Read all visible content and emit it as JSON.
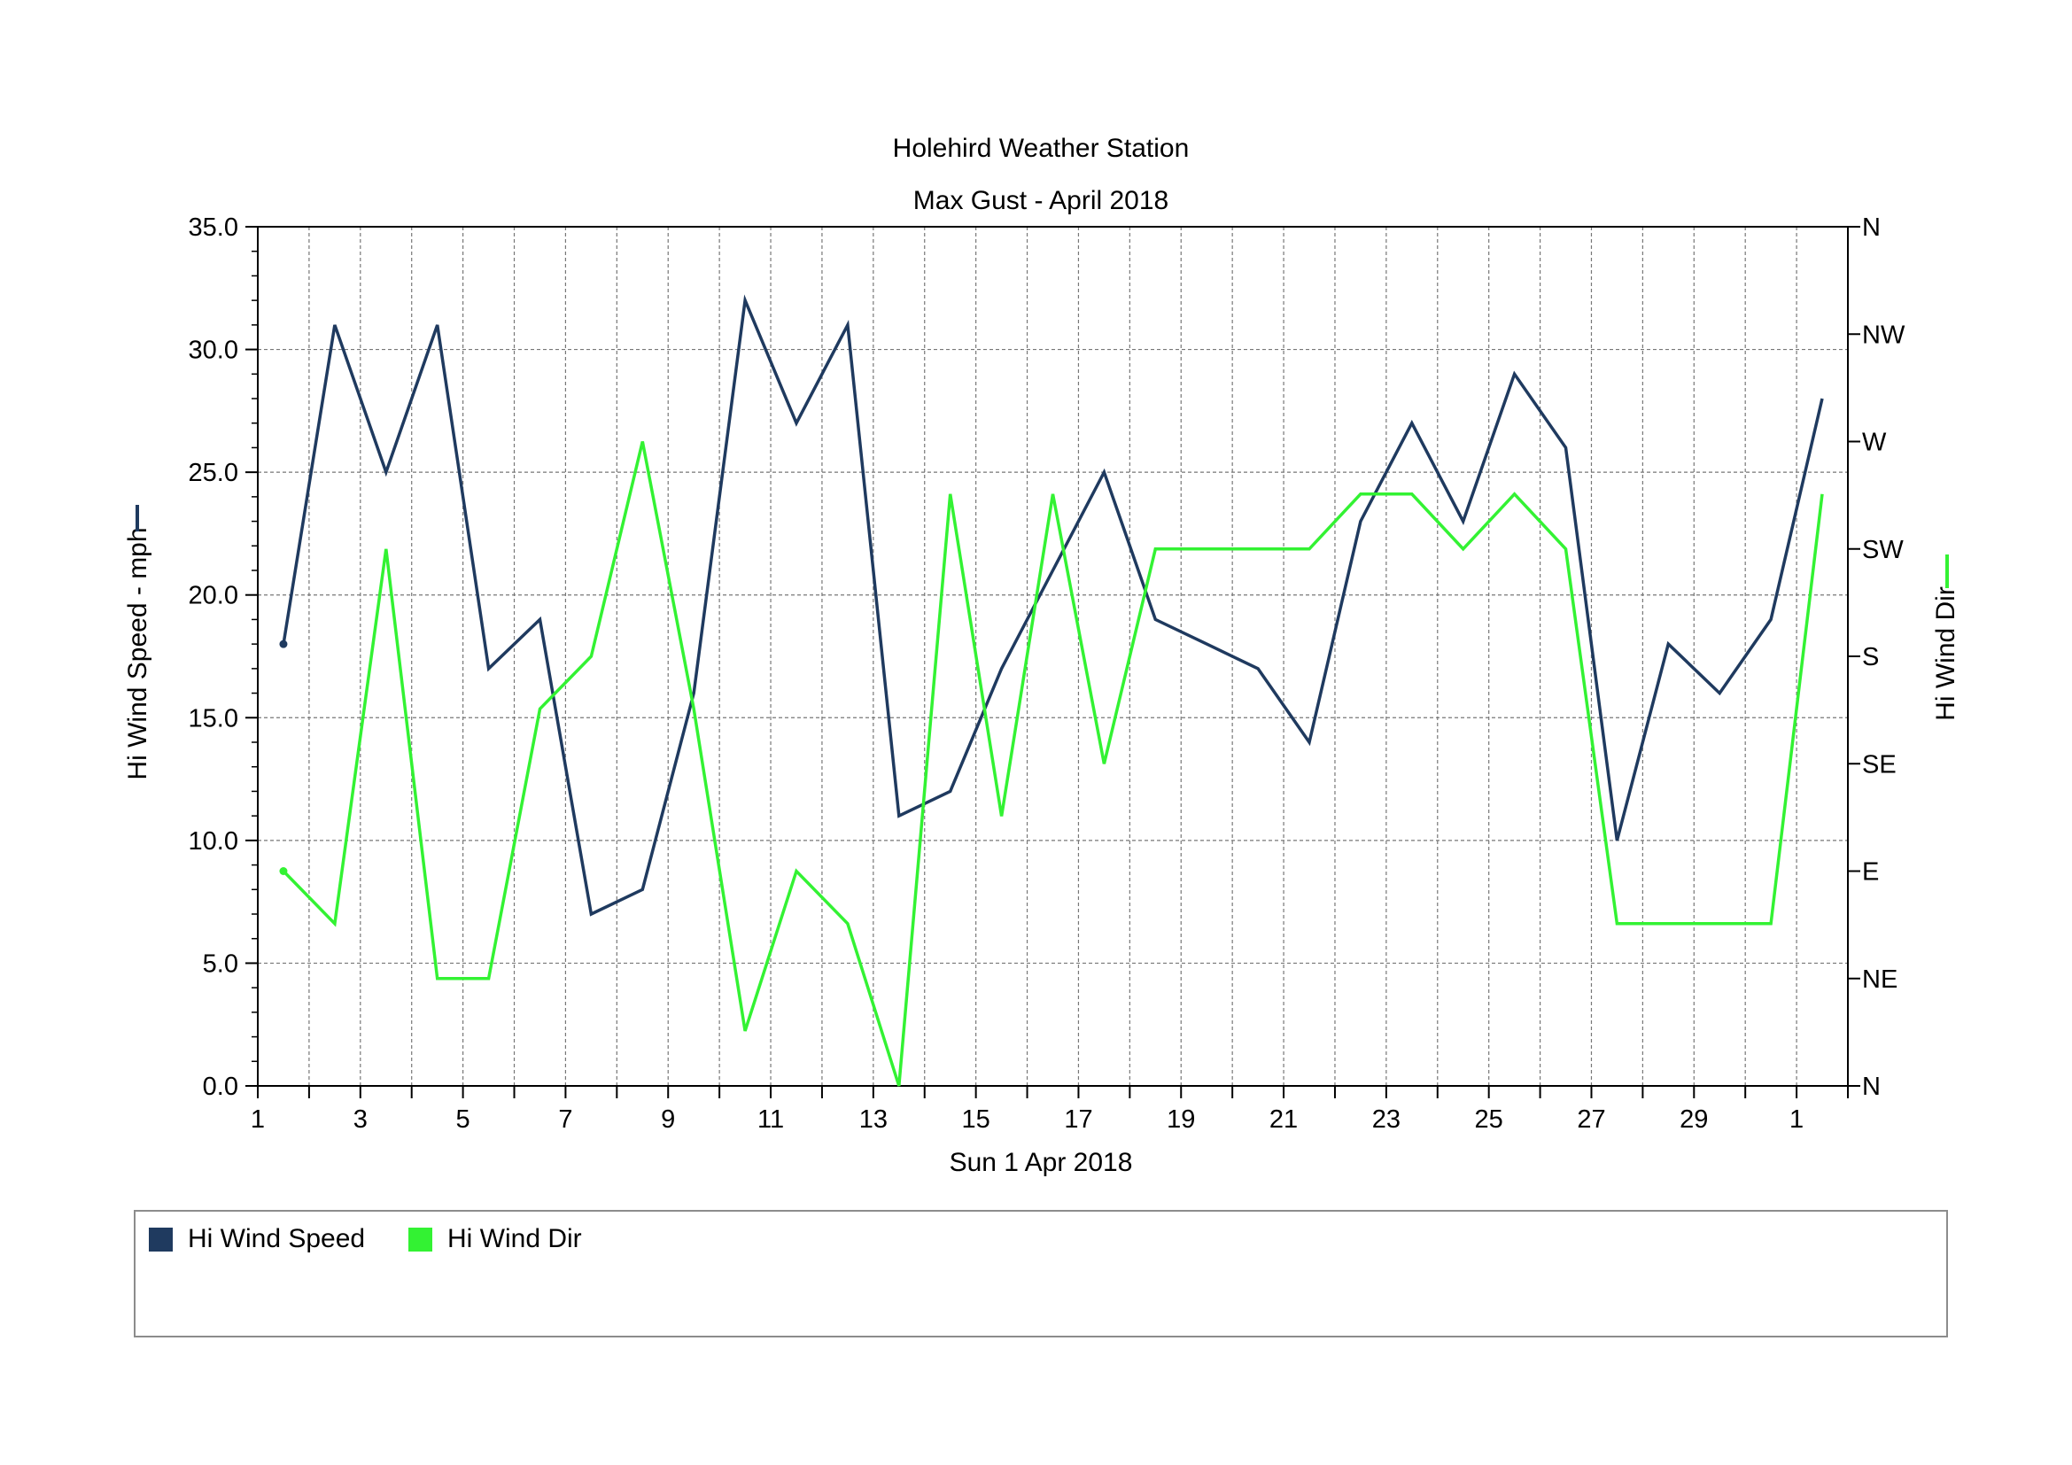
{
  "chart_data": {
    "type": "line",
    "title": "Holehird Weather Station",
    "subtitle": "Max Gust - April 2018",
    "xlabel": "Sun 1 Apr 2018",
    "ylabel_left": "Hi Wind Speed - mph",
    "ylabel_right": "Hi Wind Dir",
    "x_tick_labels": [
      "1",
      "3",
      "5",
      "7",
      "9",
      "11",
      "13",
      "15",
      "17",
      "19",
      "21",
      "23",
      "25",
      "27",
      "29",
      "1"
    ],
    "y_left_ticks": [
      "0.0",
      "5.0",
      "10.0",
      "15.0",
      "20.0",
      "25.0",
      "30.0",
      "35.0"
    ],
    "ylim_left": [
      0,
      35
    ],
    "y_right_ticks": [
      "N",
      "NE",
      "E",
      "SE",
      "S",
      "SW",
      "W",
      "NW",
      "N"
    ],
    "ylim_right_degrees": [
      0,
      360
    ],
    "grid": true,
    "legend_position": "bottom",
    "series": [
      {
        "name": "Hi Wind Speed",
        "axis": "left",
        "color": "#1f3a5f",
        "x": [
          "2018-04-01",
          "2018-04-02",
          "2018-04-03",
          "2018-04-04",
          "2018-04-05",
          "2018-04-06",
          "2018-04-07",
          "2018-04-08",
          "2018-04-09",
          "2018-04-10",
          "2018-04-11",
          "2018-04-12",
          "2018-04-13",
          "2018-04-14",
          "2018-04-15",
          "2018-04-16",
          "2018-04-17",
          "2018-04-18",
          "2018-04-19",
          "2018-04-20",
          "2018-04-21",
          "2018-04-22",
          "2018-04-23",
          "2018-04-24",
          "2018-04-25",
          "2018-04-26",
          "2018-04-27",
          "2018-04-28",
          "2018-04-29",
          "2018-04-30",
          "2018-05-01"
        ],
        "values": [
          18,
          31,
          25,
          31,
          17,
          19,
          7,
          8,
          16,
          32,
          27,
          31,
          11,
          12,
          17,
          21,
          25,
          19,
          18,
          17,
          14,
          23,
          27,
          23,
          29,
          26,
          10,
          18,
          16,
          19,
          28
        ]
      },
      {
        "name": "Hi Wind Dir",
        "axis": "right",
        "color": "#33f233",
        "x": [
          "2018-04-01",
          "2018-04-02",
          "2018-04-03",
          "2018-04-04",
          "2018-04-05",
          "2018-04-06",
          "2018-04-07",
          "2018-04-08",
          "2018-04-09",
          "2018-04-10",
          "2018-04-11",
          "2018-04-12",
          "2018-04-13",
          "2018-04-14",
          "2018-04-15",
          "2018-04-16",
          "2018-04-17",
          "2018-04-18",
          "2018-04-19",
          "2018-04-20",
          "2018-04-21",
          "2018-04-22",
          "2018-04-23",
          "2018-04-24",
          "2018-04-25",
          "2018-04-26",
          "2018-04-27",
          "2018-04-28",
          "2018-04-29",
          "2018-04-30",
          "2018-05-01"
        ],
        "values": [
          90,
          68,
          225,
          45,
          45,
          158,
          180,
          270,
          158,
          23,
          90,
          68,
          0,
          248,
          113,
          248,
          135,
          225,
          225,
          225,
          225,
          248,
          248,
          225,
          248,
          225,
          68,
          68,
          68,
          68,
          248
        ]
      }
    ]
  }
}
